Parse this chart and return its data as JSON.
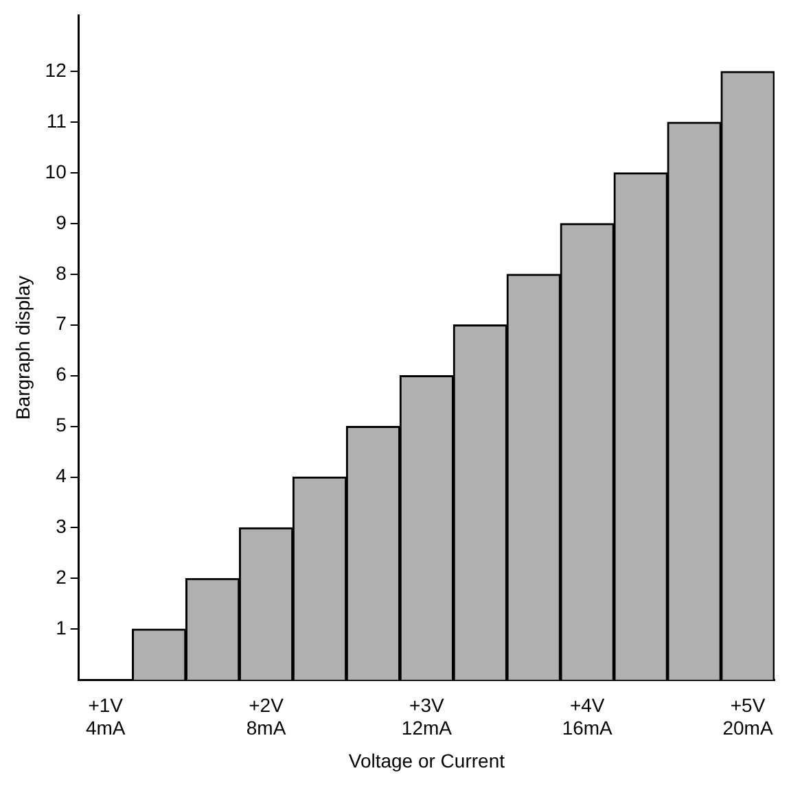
{
  "chart_data": {
    "type": "bar",
    "xlabel": "Voltage or Current",
    "ylabel": "Bargraph display",
    "categories": [
      "+1V\n4mA",
      null,
      null,
      "+2V\n8mA",
      null,
      null,
      "+3V\n12mA",
      null,
      null,
      "+4V\n16mA",
      null,
      null,
      "+5V\n20mA"
    ],
    "values": [
      null,
      1,
      2,
      3,
      4,
      5,
      6,
      7,
      8,
      9,
      10,
      11,
      12
    ],
    "color": "#b0b0b0",
    "ylim": [
      0,
      13.1
    ],
    "yticks": [
      1,
      2,
      3,
      4,
      5,
      6,
      7,
      8,
      9,
      10,
      11,
      12
    ],
    "grid": false
  }
}
